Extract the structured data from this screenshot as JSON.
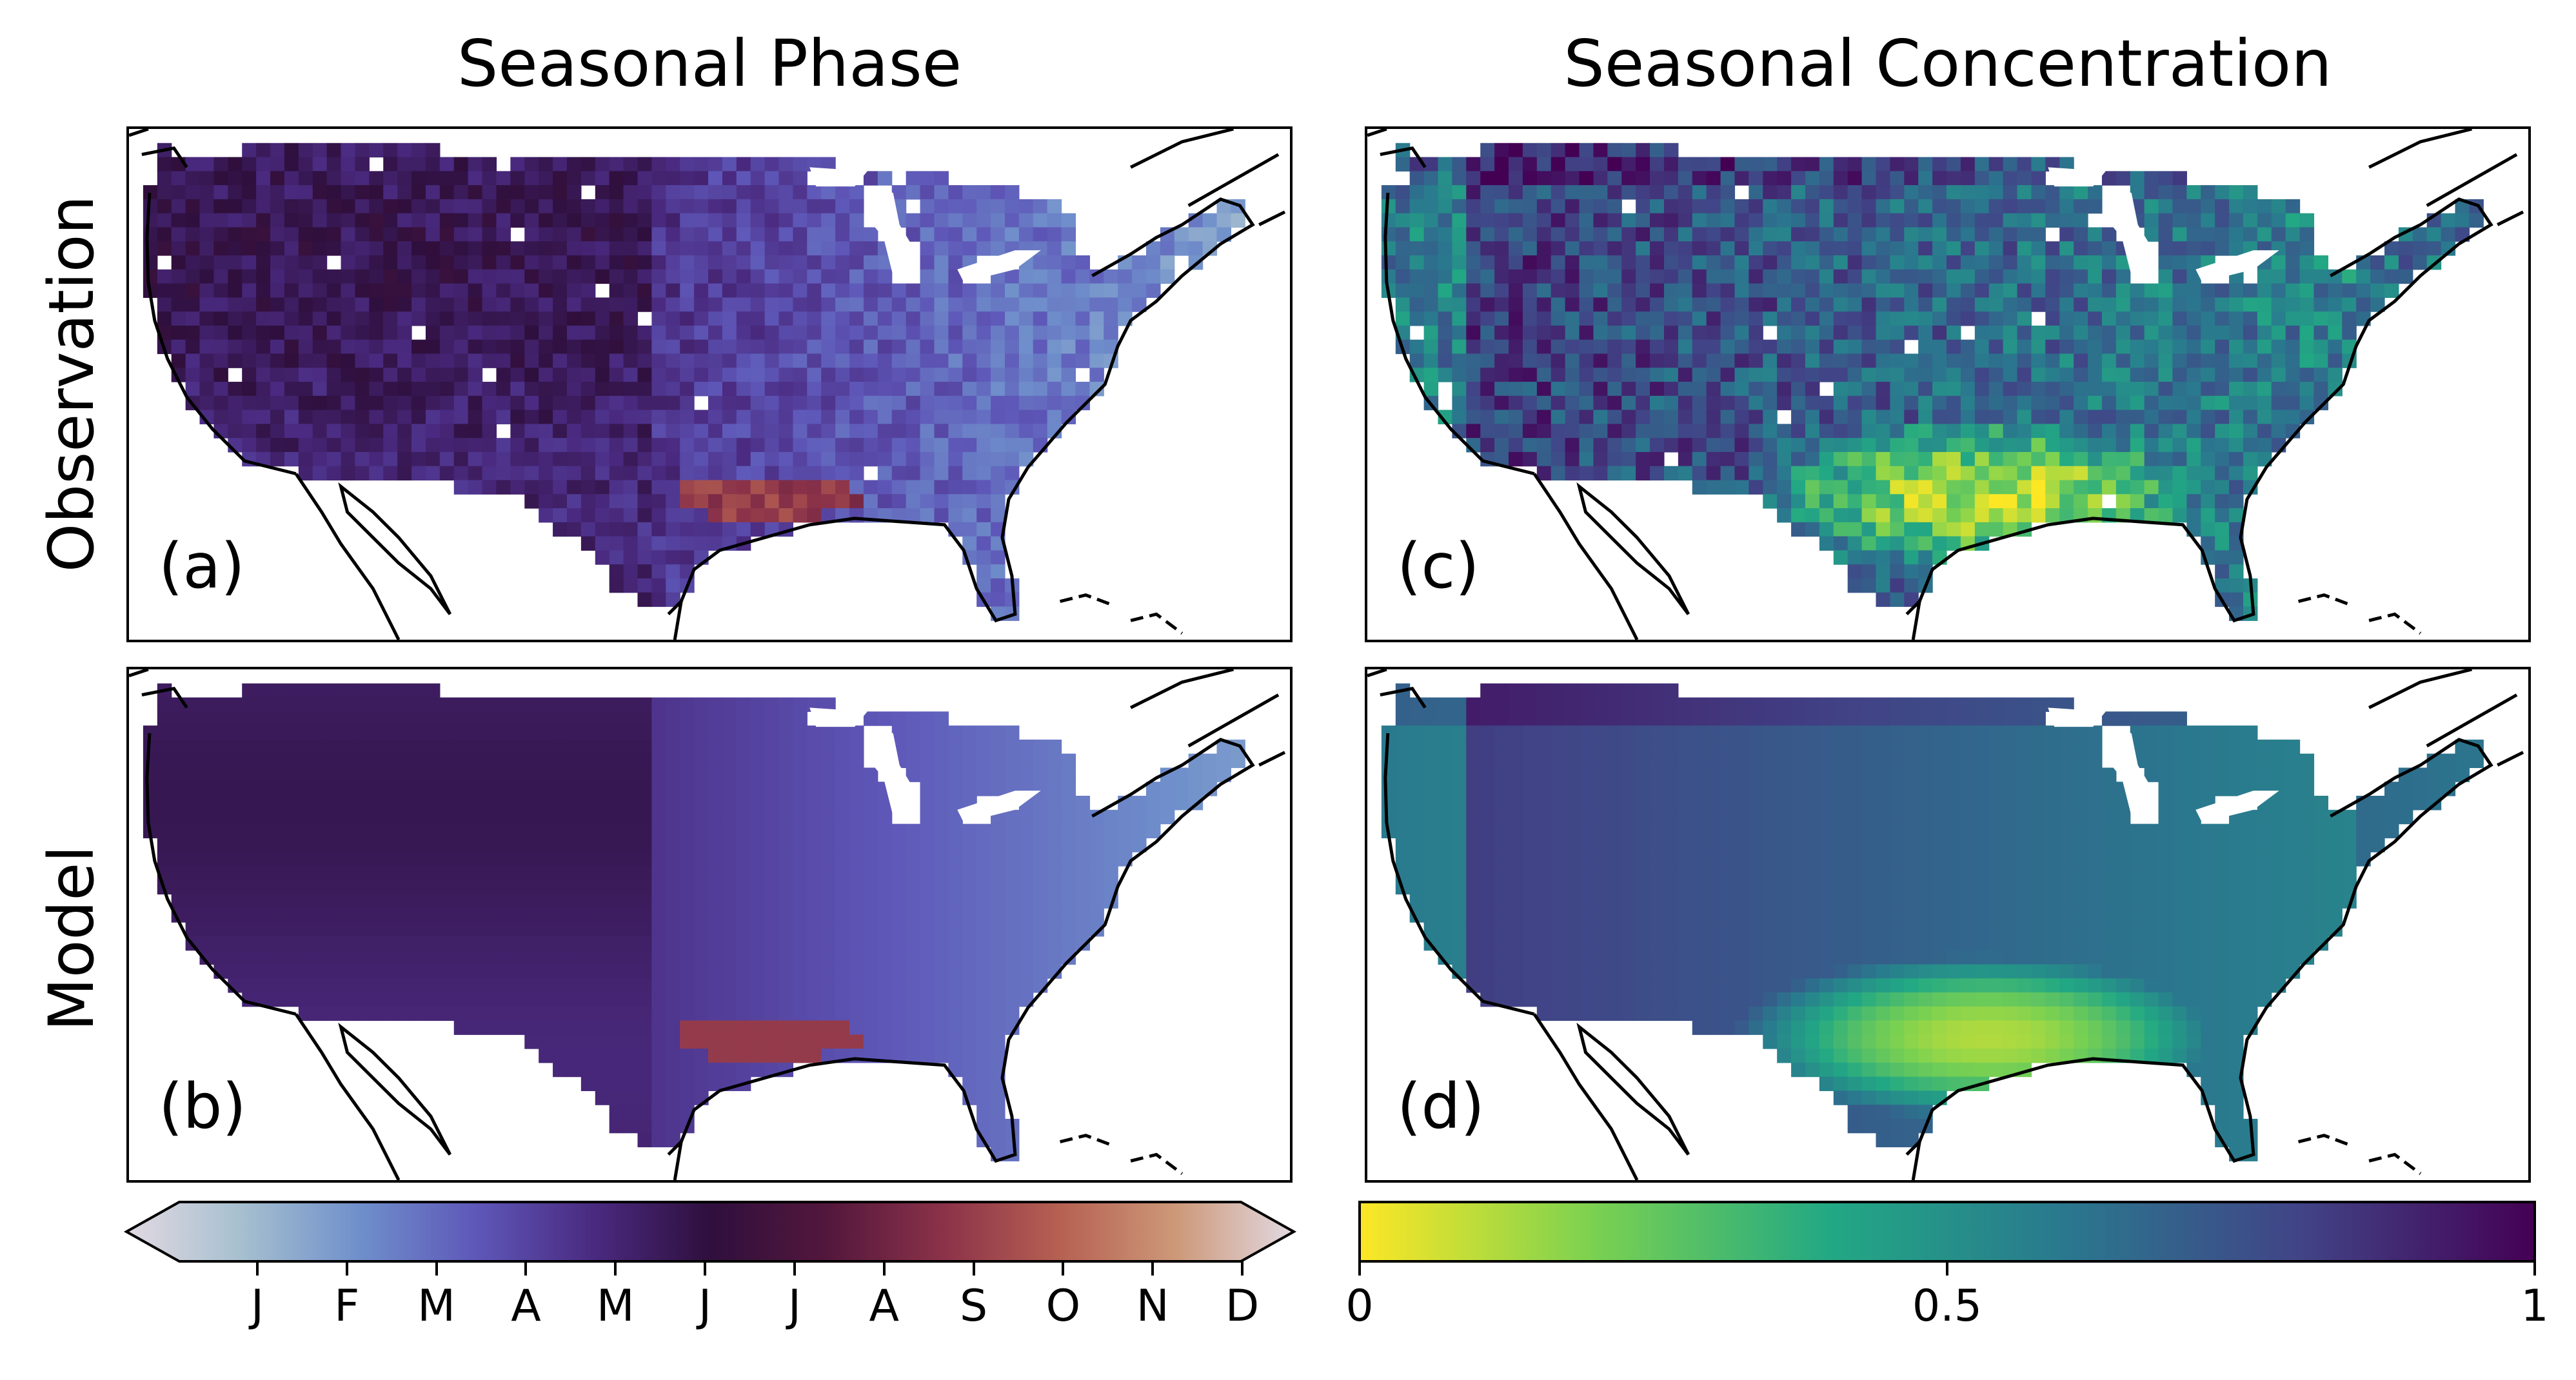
{
  "titles": {
    "left": "Seasonal Phase",
    "right": "Seasonal Concentration"
  },
  "row_labels": {
    "top": "Observation",
    "bottom": "Model"
  },
  "panels": [
    {
      "label": "(a)",
      "variable": "phase",
      "source": "observation"
    },
    {
      "label": "(c)",
      "variable": "concentration",
      "source": "observation"
    },
    {
      "label": "(b)",
      "variable": "phase",
      "source": "model"
    },
    {
      "label": "(d)",
      "variable": "concentration",
      "source": "model"
    }
  ],
  "phase_colorbar": {
    "ticks": [
      "J",
      "F",
      "M",
      "A",
      "M",
      "J",
      "J",
      "A",
      "S",
      "O",
      "N",
      "D"
    ],
    "extend": "both",
    "colors": [
      "#e2d9e2",
      "#a5bfcf",
      "#6f8fcb",
      "#5e57b8",
      "#4a2a80",
      "#2f0f3d",
      "#53173c",
      "#8b3249",
      "#b66152",
      "#cd9979",
      "#e2d9e2"
    ]
  },
  "concentration_colorbar": {
    "ticks": [
      "0",
      "0.5",
      "1"
    ],
    "range": [
      0,
      1
    ],
    "colors": [
      "#fde725",
      "#7ad151",
      "#22a884",
      "#2a788e",
      "#414487",
      "#440154"
    ]
  }
}
